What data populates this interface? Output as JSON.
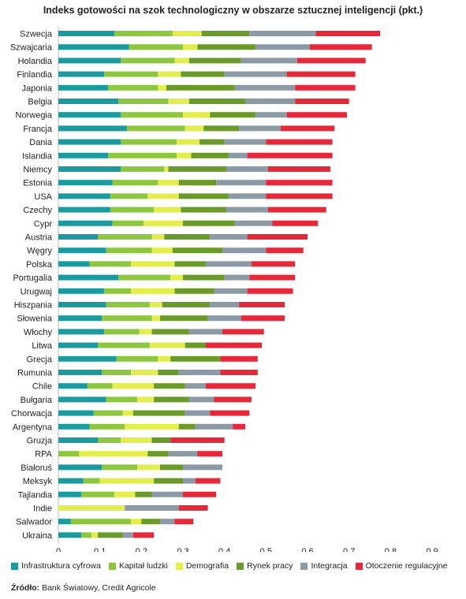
{
  "chart_data": {
    "type": "bar",
    "orientation": "horizontal",
    "stacked": true,
    "title": "Indeks gotowości na szok technologiczny w obszarze sztucznej inteligencji (pkt.)",
    "xlim": [
      0,
      0.9
    ],
    "xticks": [
      "0",
      "0,1",
      "0,2",
      "0,3",
      "0,4",
      "0,5",
      "0,6",
      "0,7",
      "0,8",
      "0,9"
    ],
    "grid": false,
    "legend_position": "bottom",
    "categories": [
      "Szwecja",
      "Szwajcaria",
      "Holandia",
      "Finlandia",
      "Japonia",
      "Belgia",
      "Norwegia",
      "Francja",
      "Dania",
      "Islandia",
      "Niemcy",
      "Estonia",
      "USA",
      "Czechy",
      "Cypr",
      "Austria",
      "Węgry",
      "Polska",
      "Portugalia",
      "Urugwaj",
      "Hiszpania",
      "Słowenia",
      "Włochy",
      "Litwa",
      "Grecja",
      "Rumunia",
      "Chile",
      "Bułgaria",
      "Chorwacja",
      "Argentyna",
      "Gruzja",
      "RPA",
      "Białoruś",
      "Meksyk",
      "Tajlandia",
      "Indie",
      "Salwador",
      "Ukraina"
    ],
    "series": [
      {
        "name": "Infrastruktura cyfrowa",
        "color": "#1a9ba0",
        "values": [
          0.135,
          0.17,
          0.15,
          0.11,
          0.12,
          0.145,
          0.15,
          0.165,
          0.15,
          0.12,
          0.15,
          0.13,
          0.125,
          0.125,
          0.13,
          0.095,
          0.115,
          0.075,
          0.145,
          0.11,
          0.115,
          0.105,
          0.11,
          0.095,
          0.14,
          0.105,
          0.07,
          0.115,
          0.085,
          0.075,
          0.095,
          0.0,
          0.105,
          0.06,
          0.055,
          0.0,
          0.03,
          0.055
        ]
      },
      {
        "name": "Kapitał ludzki",
        "color": "#8dc63f",
        "values": [
          0.14,
          0.13,
          0.13,
          0.13,
          0.12,
          0.12,
          0.15,
          0.14,
          0.135,
          0.165,
          0.105,
          0.11,
          0.09,
          0.105,
          0.075,
          0.13,
          0.11,
          0.1,
          0.125,
          0.065,
          0.105,
          0.12,
          0.085,
          0.125,
          0.1,
          0.07,
          0.06,
          0.075,
          0.07,
          0.085,
          0.055,
          0.05,
          0.085,
          0.04,
          0.08,
          0.0,
          0.145,
          0.025
        ]
      },
      {
        "name": "Demografia",
        "color": "#e3ee4a",
        "values": [
          0.07,
          0.035,
          0.035,
          0.055,
          0.02,
          0.05,
          0.065,
          0.045,
          0.055,
          0.035,
          0.01,
          0.05,
          0.075,
          0.065,
          0.095,
          0.03,
          0.05,
          0.105,
          0.03,
          0.105,
          0.03,
          0.02,
          0.03,
          0.085,
          0.03,
          0.065,
          0.1,
          0.04,
          0.025,
          0.13,
          0.075,
          0.165,
          0.055,
          0.13,
          0.05,
          0.16,
          0.025,
          0.015
        ]
      },
      {
        "name": "Rynek pracy",
        "color": "#6a9a2a",
        "values": [
          0.115,
          0.14,
          0.125,
          0.105,
          0.165,
          0.135,
          0.11,
          0.085,
          0.06,
          0.09,
          0.14,
          0.09,
          0.12,
          0.11,
          0.125,
          0.11,
          0.12,
          0.075,
          0.1,
          0.095,
          0.115,
          0.115,
          0.09,
          0.05,
          0.12,
          0.05,
          0.075,
          0.085,
          0.125,
          0.04,
          0.045,
          0.05,
          0.055,
          0.07,
          0.04,
          0.0,
          0.045,
          0.06
        ]
      },
      {
        "name": "Integracja",
        "color": "#8c9aa6",
        "values": [
          0.16,
          0.13,
          0.135,
          0.15,
          0.145,
          0.12,
          0.075,
          0.1,
          0.1,
          0.045,
          0.1,
          0.12,
          0.09,
          0.1,
          0.09,
          0.09,
          0.105,
          0.11,
          0.06,
          0.08,
          0.07,
          0.08,
          0.08,
          0.0,
          0.0,
          0.1,
          0.05,
          0.06,
          0.06,
          0.09,
          0.0,
          0.07,
          0.095,
          0.03,
          0.075,
          0.13,
          0.035,
          0.025
        ]
      },
      {
        "name": "Otoczenie regulacyjne",
        "color": "#e62838",
        "values": [
          0.155,
          0.15,
          0.165,
          0.165,
          0.145,
          0.13,
          0.145,
          0.13,
          0.16,
          0.205,
          0.15,
          0.16,
          0.16,
          0.14,
          0.11,
          0.145,
          0.09,
          0.105,
          0.11,
          0.11,
          0.11,
          0.105,
          0.1,
          0.135,
          0.09,
          0.09,
          0.12,
          0.09,
          0.095,
          0.03,
          0.13,
          0.06,
          0.0,
          0.06,
          0.08,
          0.07,
          0.045,
          0.05
        ]
      }
    ]
  },
  "source": {
    "label": "Źródło:",
    "text": "Bank Światowy, Credit Agricole"
  }
}
